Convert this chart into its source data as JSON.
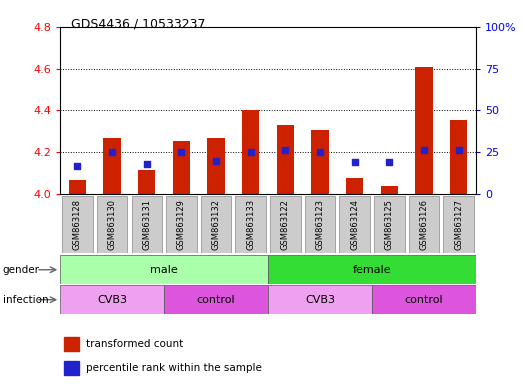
{
  "title": "GDS4436 / 10533237",
  "samples": [
    "GSM863128",
    "GSM863130",
    "GSM863131",
    "GSM863129",
    "GSM863132",
    "GSM863133",
    "GSM863122",
    "GSM863123",
    "GSM863124",
    "GSM863125",
    "GSM863126",
    "GSM863127"
  ],
  "transformed_count": [
    4.065,
    4.27,
    4.115,
    4.255,
    4.27,
    4.4,
    4.33,
    4.305,
    4.075,
    4.04,
    4.61,
    4.355
  ],
  "percentile_rank": [
    17,
    25,
    18,
    25,
    20,
    25,
    26,
    25,
    19,
    19,
    26,
    26
  ],
  "gender_groups": [
    {
      "label": "male",
      "start": 0,
      "end": 6,
      "color": "#aaffaa"
    },
    {
      "label": "female",
      "start": 6,
      "end": 12,
      "color": "#33dd33"
    }
  ],
  "infection_groups": [
    {
      "label": "CVB3",
      "start": 0,
      "end": 3,
      "color": "#f0a0f0"
    },
    {
      "label": "control",
      "start": 3,
      "end": 6,
      "color": "#dd55dd"
    },
    {
      "label": "CVB3",
      "start": 6,
      "end": 9,
      "color": "#f0a0f0"
    },
    {
      "label": "control",
      "start": 9,
      "end": 12,
      "color": "#dd55dd"
    }
  ],
  "ylim_left": [
    4.0,
    4.8
  ],
  "ylim_right": [
    0,
    100
  ],
  "yticks_left": [
    4.0,
    4.2,
    4.4,
    4.6,
    4.8
  ],
  "yticks_right": [
    0,
    25,
    50,
    75,
    100
  ],
  "bar_color": "#cc2200",
  "dot_color": "#2222cc",
  "bar_bottom": 4.0,
  "legend_items": [
    {
      "label": "transformed count",
      "color": "#cc2200"
    },
    {
      "label": "percentile rank within the sample",
      "color": "#2222cc"
    }
  ],
  "grid_lines": [
    4.2,
    4.4,
    4.6
  ],
  "label_box_color": "#cccccc",
  "fig_bg": "#ffffff"
}
